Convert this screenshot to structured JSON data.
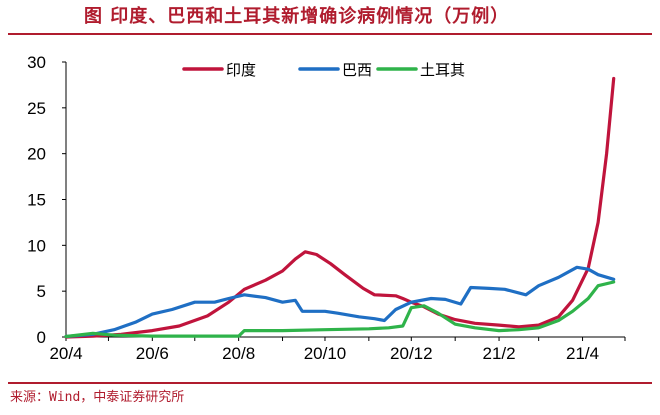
{
  "title": "图 印度、巴西和土耳其新增确诊病例情况（万例）",
  "source": "来源：Wind，中泰证券研究所",
  "chart_data": {
    "type": "line",
    "title": "图 印度、巴西和土耳其新增确诊病例情况（万例）",
    "xlabel": "",
    "ylabel": "",
    "ylim": [
      0,
      30
    ],
    "y_ticks": [
      "0",
      "5",
      "10",
      "15",
      "20",
      "25",
      "30"
    ],
    "x_ticks": [
      "20/4",
      "20/6",
      "20/8",
      "20/10",
      "20/12",
      "21/2",
      "21/4"
    ],
    "x_range": [
      "2020-04-01",
      "2021-05-01"
    ],
    "grid": false,
    "legend_position": "top",
    "series": [
      {
        "name": "印度",
        "color": "#c0143c",
        "points": [
          [
            "2020-04-01",
            0
          ],
          [
            "2020-04-20",
            0.1
          ],
          [
            "2020-05-10",
            0.3
          ],
          [
            "2020-06-01",
            0.7
          ],
          [
            "2020-06-20",
            1.2
          ],
          [
            "2020-07-10",
            2.3
          ],
          [
            "2020-07-25",
            3.8
          ],
          [
            "2020-08-05",
            5.2
          ],
          [
            "2020-08-20",
            6.2
          ],
          [
            "2020-09-01",
            7.2
          ],
          [
            "2020-09-10",
            8.5
          ],
          [
            "2020-09-17",
            9.3
          ],
          [
            "2020-09-25",
            9.0
          ],
          [
            "2020-10-05",
            8.0
          ],
          [
            "2020-10-15",
            6.8
          ],
          [
            "2020-10-28",
            5.3
          ],
          [
            "2020-11-05",
            4.6
          ],
          [
            "2020-11-20",
            4.5
          ],
          [
            "2020-11-25",
            4.2
          ],
          [
            "2020-12-01",
            3.8
          ],
          [
            "2020-12-10",
            3.3
          ],
          [
            "2020-12-20",
            2.5
          ],
          [
            "2021-01-01",
            1.9
          ],
          [
            "2021-01-15",
            1.5
          ],
          [
            "2021-02-01",
            1.3
          ],
          [
            "2021-02-15",
            1.1
          ],
          [
            "2021-03-01",
            1.3
          ],
          [
            "2021-03-15",
            2.2
          ],
          [
            "2021-03-25",
            4.0
          ],
          [
            "2021-04-05",
            7.5
          ],
          [
            "2021-04-12",
            12.5
          ],
          [
            "2021-04-18",
            20.0
          ],
          [
            "2021-04-23",
            28.2
          ]
        ]
      },
      {
        "name": "巴西",
        "color": "#1f6fc4",
        "points": [
          [
            "2020-04-01",
            0.05
          ],
          [
            "2020-04-20",
            0.3
          ],
          [
            "2020-05-05",
            0.8
          ],
          [
            "2020-05-20",
            1.6
          ],
          [
            "2020-06-01",
            2.5
          ],
          [
            "2020-06-15",
            3.0
          ],
          [
            "2020-07-01",
            3.8
          ],
          [
            "2020-07-15",
            3.8
          ],
          [
            "2020-07-25",
            4.2
          ],
          [
            "2020-08-05",
            4.6
          ],
          [
            "2020-08-20",
            4.3
          ],
          [
            "2020-09-01",
            3.8
          ],
          [
            "2020-09-10",
            4.0
          ],
          [
            "2020-09-15",
            2.8
          ],
          [
            "2020-10-01",
            2.8
          ],
          [
            "2020-10-10",
            2.6
          ],
          [
            "2020-10-25",
            2.2
          ],
          [
            "2020-11-05",
            2.0
          ],
          [
            "2020-11-12",
            1.8
          ],
          [
            "2020-11-20",
            3.0
          ],
          [
            "2020-12-01",
            3.8
          ],
          [
            "2020-12-15",
            4.2
          ],
          [
            "2020-12-25",
            4.1
          ],
          [
            "2021-01-05",
            3.6
          ],
          [
            "2021-01-12",
            5.4
          ],
          [
            "2021-01-25",
            5.3
          ],
          [
            "2021-02-05",
            5.2
          ],
          [
            "2021-02-20",
            4.6
          ],
          [
            "2021-03-01",
            5.6
          ],
          [
            "2021-03-15",
            6.5
          ],
          [
            "2021-03-28",
            7.6
          ],
          [
            "2021-04-05",
            7.4
          ],
          [
            "2021-04-12",
            6.8
          ],
          [
            "2021-04-23",
            6.3
          ]
        ]
      },
      {
        "name": "土耳其",
        "color": "#2fb34a",
        "points": [
          [
            "2020-04-01",
            0.05
          ],
          [
            "2020-04-20",
            0.4
          ],
          [
            "2020-05-05",
            0.2
          ],
          [
            "2020-06-01",
            0.1
          ],
          [
            "2020-07-01",
            0.1
          ],
          [
            "2020-08-01",
            0.1
          ],
          [
            "2020-08-05",
            0.7
          ],
          [
            "2020-09-01",
            0.7
          ],
          [
            "2020-10-01",
            0.8
          ],
          [
            "2020-11-01",
            0.9
          ],
          [
            "2020-11-15",
            1.0
          ],
          [
            "2020-11-25",
            1.2
          ],
          [
            "2020-12-01",
            3.2
          ],
          [
            "2020-12-10",
            3.4
          ],
          [
            "2020-12-20",
            2.6
          ],
          [
            "2021-01-01",
            1.4
          ],
          [
            "2021-01-15",
            1.0
          ],
          [
            "2021-02-01",
            0.7
          ],
          [
            "2021-02-15",
            0.8
          ],
          [
            "2021-03-01",
            1.0
          ],
          [
            "2021-03-15",
            1.8
          ],
          [
            "2021-03-25",
            2.8
          ],
          [
            "2021-04-05",
            4.2
          ],
          [
            "2021-04-12",
            5.6
          ],
          [
            "2021-04-23",
            6.0
          ]
        ]
      }
    ]
  }
}
